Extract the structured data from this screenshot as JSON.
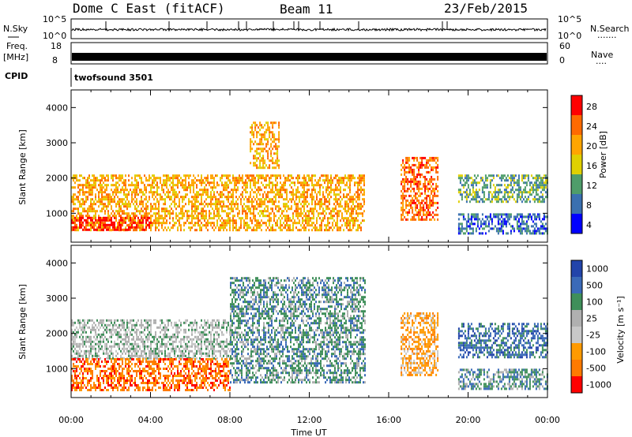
{
  "header": {
    "radar": "Dome C East (fitACF)",
    "beam": "Beam 11",
    "date": "23/Feb/2015"
  },
  "panels": {
    "nsky": {
      "label": "N.Sky",
      "ticks": [
        "10^5",
        "10^0"
      ]
    },
    "nsearch": {
      "label": "N.Search",
      "dots": "......."
    },
    "freq": {
      "label_top": "Freq.",
      "label_bottom": "[MHz]",
      "ticks": [
        "18",
        "8"
      ]
    },
    "nave": {
      "label": "Nave",
      "dots": "....",
      "ticks": [
        "60",
        "0"
      ]
    },
    "cpid": {
      "label": "CPID",
      "value": "twofsound 3501"
    }
  },
  "axes": {
    "ylabel": "Slant Range [km]",
    "xlabel": "Time UT",
    "xticks": [
      "00:00",
      "04:00",
      "08:00",
      "12:00",
      "16:00",
      "20:00",
      "00:00"
    ]
  },
  "chart_data": [
    {
      "type": "heatmap",
      "title": "",
      "xlabel": "Time UT",
      "ylabel": "Slant Range [km]",
      "xlim": [
        0,
        24
      ],
      "ylim": [
        180,
        4500
      ],
      "yticks": [
        1000,
        2000,
        3000,
        4000
      ],
      "colorbar": {
        "label": "Power [dB]",
        "ticks": [
          "28",
          "24",
          "20",
          "16",
          "12",
          "8",
          "4"
        ]
      },
      "echo_regions": [
        {
          "t": [
            0.0,
            14.8
          ],
          "r": [
            500,
            2100
          ],
          "value": "20"
        },
        {
          "t": [
            0.0,
            4.0
          ],
          "r": [
            500,
            900
          ],
          "value": "28"
        },
        {
          "t": [
            9.0,
            10.5
          ],
          "r": [
            2300,
            3600
          ],
          "value": "20"
        },
        {
          "t": [
            16.6,
            18.5
          ],
          "r": [
            800,
            2600
          ],
          "value": "24"
        },
        {
          "t": [
            19.5,
            24.0
          ],
          "r": [
            1300,
            2100
          ],
          "value": "12"
        },
        {
          "t": [
            19.5,
            24.0
          ],
          "r": [
            400,
            1000
          ],
          "value": "8"
        }
      ]
    },
    {
      "type": "heatmap",
      "title": "",
      "xlabel": "Time UT",
      "ylabel": "Slant Range [km]",
      "xlim": [
        0,
        24
      ],
      "ylim": [
        180,
        4500
      ],
      "yticks": [
        1000,
        2000,
        3000,
        4000
      ],
      "colorbar": {
        "label": "Velocity [m s⁻¹]",
        "ticks": [
          "1000",
          "500",
          "100",
          "25",
          "-25",
          "-100",
          "-500",
          "-1000"
        ]
      },
      "echo_regions": [
        {
          "t": [
            0.0,
            8.0
          ],
          "r": [
            1300,
            2400
          ],
          "value": "25"
        },
        {
          "t": [
            0.0,
            8.0
          ],
          "r": [
            400,
            1300
          ],
          "value": "-500"
        },
        {
          "t": [
            8.0,
            14.8
          ],
          "r": [
            600,
            3600
          ],
          "value": "100"
        },
        {
          "t": [
            16.6,
            18.5
          ],
          "r": [
            800,
            2600
          ],
          "value": "-100"
        },
        {
          "t": [
            19.5,
            24.0
          ],
          "r": [
            1300,
            2300
          ],
          "value": "500"
        },
        {
          "t": [
            19.5,
            24.0
          ],
          "r": [
            400,
            1000
          ],
          "value": "100"
        }
      ]
    }
  ]
}
